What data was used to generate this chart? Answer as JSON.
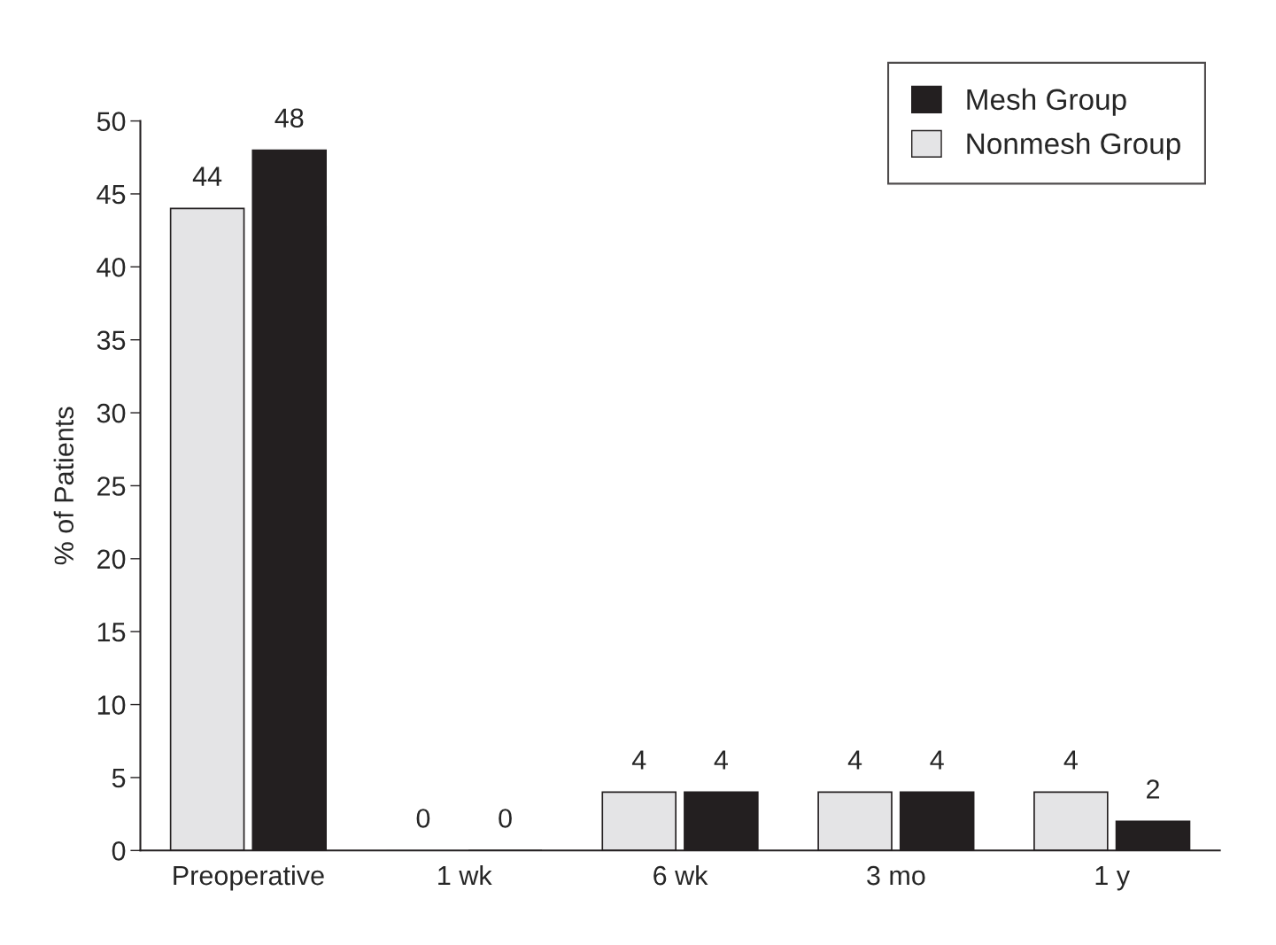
{
  "chart_data": {
    "type": "bar",
    "ylabel": "% of Patients",
    "categories": [
      "Preoperative",
      "1 wk",
      "6 wk",
      "3 mo",
      "1 y"
    ],
    "series": [
      {
        "name": "Nonmesh Group",
        "color": "#e4e4e6",
        "values": [
          44,
          0,
          4,
          4,
          4
        ]
      },
      {
        "name": "Mesh Group",
        "color": "#231f20",
        "values": [
          48,
          0,
          4,
          4,
          2
        ]
      }
    ],
    "ylim": [
      0,
      50
    ],
    "yticks": [
      0,
      5,
      10,
      15,
      20,
      25,
      30,
      35,
      40,
      45,
      50
    ],
    "data_labels": true,
    "grid": false,
    "legend": "top right"
  }
}
